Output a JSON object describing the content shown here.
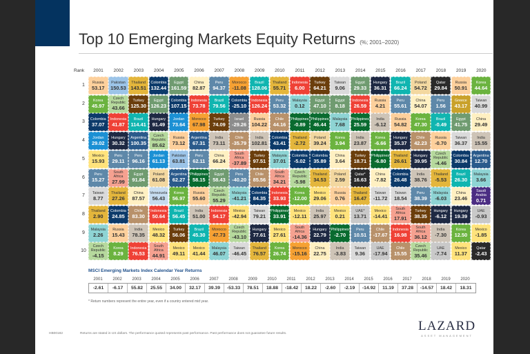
{
  "header": {
    "title": "Top 10 Emerging Markets Equity Returns",
    "subtitle": "(%; 2001–2020)"
  },
  "grid": {
    "rank_label": "Rank",
    "years": [
      "2001",
      "2002",
      "2003",
      "2004",
      "2005",
      "2006",
      "2007",
      "2008",
      "2009",
      "2010",
      "2011",
      "2012",
      "2013",
      "2014",
      "2015",
      "2016",
      "2017",
      "2018",
      "2019",
      "2020"
    ],
    "rows": [
      {
        "rank": "1",
        "cells": [
          [
            "Russia",
            "53.17"
          ],
          [
            "Pakistan",
            "150.53"
          ],
          [
            "Thailand",
            "143.51"
          ],
          [
            "Colombia",
            "132.44"
          ],
          [
            "Egypt",
            "161.59"
          ],
          [
            "China",
            "82.87"
          ],
          [
            "Peru",
            "94.37"
          ],
          [
            "Morocco",
            "-11.08"
          ],
          [
            "Brazil",
            "128.06"
          ],
          [
            "Thailand",
            "55.71"
          ],
          [
            "Indonesia",
            "6.00"
          ],
          [
            "Turkey",
            "64.21"
          ],
          [
            "Taiwan",
            "9.06"
          ],
          [
            "Egypt",
            "29.33"
          ],
          [
            "Hungary",
            "36.31"
          ],
          [
            "Brazil",
            "66.24"
          ],
          [
            "Poland",
            "54.72"
          ],
          [
            "Qatar",
            "29.84"
          ],
          [
            "Russia",
            "50.91"
          ],
          [
            "Korea",
            "44.64"
          ]
        ]
      },
      {
        "rank": "2",
        "cells": [
          [
            "Korea",
            "45.97"
          ],
          [
            "Czech Republic",
            "43.66"
          ],
          [
            "Turkey",
            "125.30"
          ],
          [
            "Egypt",
            "126.23"
          ],
          [
            "Colombia",
            "107.15"
          ],
          [
            "Indonesia",
            "73.78"
          ],
          [
            "Brazil",
            "79.56"
          ],
          [
            "Colombia",
            "-25.10"
          ],
          [
            "Indonesia",
            "126.24"
          ],
          [
            "Peru",
            "53.32"
          ],
          [
            "Malaysia",
            "0.12"
          ],
          [
            "Egypt",
            "47.10"
          ],
          [
            "Egypt",
            "8.18"
          ],
          [
            "Indonesia",
            "26.59"
          ],
          [
            "Russia",
            "4.21"
          ],
          [
            "Peru",
            "55.61"
          ],
          [
            "China",
            "54.07"
          ],
          [
            "Peru",
            "1.56"
          ],
          [
            "Greece",
            "43.17"
          ],
          [
            "Taiwan",
            "40.99"
          ]
        ]
      },
      {
        "rank": "3",
        "cells": [
          [
            "Colombia",
            "37.07"
          ],
          [
            "Indonesia",
            "41.87"
          ],
          [
            "Brazil",
            "114.41"
          ],
          [
            "Hungary",
            "91.49"
          ],
          [
            "Jordan",
            "73.64"
          ],
          [
            "Morocco",
            "67.98"
          ],
          [
            "Turkey",
            "74.09"
          ],
          [
            "Israel",
            "-29.26"
          ],
          [
            "Russia",
            "104.22"
          ],
          [
            "Chile",
            "44.16"
          ],
          [
            "Philippines",
            "-0.89"
          ],
          [
            "Philippines",
            "46.44"
          ],
          [
            "Malaysia",
            "7.68"
          ],
          [
            "Philippines",
            "25.59"
          ],
          [
            "India",
            "-6.12"
          ],
          [
            "Russia",
            "54.82"
          ],
          [
            "Korea",
            "47.30"
          ],
          [
            "Brazil",
            "-0.49"
          ],
          [
            "Egypt",
            "41.75"
          ],
          [
            "China",
            "29.49"
          ]
        ]
      },
      {
        "rank": "4",
        "cells": [
          [
            "Jordan",
            "29.02"
          ],
          [
            "Hungary",
            "30.32"
          ],
          [
            "Argentina",
            "100.35"
          ],
          [
            "Czech Republic",
            "85.62"
          ],
          [
            "Russia",
            "73.12"
          ],
          [
            "Argentina",
            "67.31"
          ],
          [
            "India",
            "73.11"
          ],
          [
            "Chile",
            "-35.79"
          ],
          [
            "India",
            "102.81"
          ],
          [
            "Colombia",
            "43.41"
          ],
          [
            "Thailand",
            "-2.72"
          ],
          [
            "Poland",
            "39.24"
          ],
          [
            "Korea",
            "3.94"
          ],
          [
            "India",
            "23.87"
          ],
          [
            "Korea",
            "-6.66"
          ],
          [
            "Hungary",
            "35.37"
          ],
          [
            "Chile",
            "42.23"
          ],
          [
            "Russia",
            "-0.70"
          ],
          [
            "Taiwan",
            "36.37"
          ],
          [
            "India",
            "15.55"
          ]
        ]
      },
      {
        "rank": "5",
        "cells": [
          [
            "Mexico",
            "15.93"
          ],
          [
            "Peru",
            "29.11"
          ],
          [
            "Peru",
            "96.16"
          ],
          [
            "Jordan",
            "61.13"
          ],
          [
            "Pakistan",
            "63.81"
          ],
          [
            "Peru",
            "62.11"
          ],
          [
            "China",
            "66.24"
          ],
          [
            "South Africa",
            "-37.89"
          ],
          [
            "Turkey",
            "97.51"
          ],
          [
            "Malaysia",
            "37.01"
          ],
          [
            "Colombia",
            "-5.02"
          ],
          [
            "Colombia",
            "35.89"
          ],
          [
            "China",
            "3.64"
          ],
          [
            "Turkey",
            "18.71"
          ],
          [
            "Philippines",
            "-6.80"
          ],
          [
            "Thailand",
            "26.61"
          ],
          [
            "Hungary",
            "39.95"
          ],
          [
            "Czech Republic",
            "-4.46"
          ],
          [
            "Colombia",
            "30.84"
          ],
          [
            "Argentina",
            "12.70"
          ]
        ]
      },
      {
        "rank": "6",
        "cells": [
          [
            "Peru",
            "15.27"
          ],
          [
            "South Africa",
            "27.99"
          ],
          [
            "Egypt",
            "91.84"
          ],
          [
            "Poland",
            "61.08"
          ],
          [
            "Argentina",
            "62.27"
          ],
          [
            "Philippines",
            "58.15"
          ],
          [
            "Egypt",
            "58.43"
          ],
          [
            "Peru",
            "-40.20"
          ],
          [
            "Chile",
            "85.56"
          ],
          [
            "South Africa",
            "34.21"
          ],
          [
            "Czech Republic",
            "-5.98"
          ],
          [
            "Thailand",
            "34.53"
          ],
          [
            "Poland",
            "2.59"
          ],
          [
            "Qatar*",
            "16.63"
          ],
          [
            "China",
            "-7.82"
          ],
          [
            "Colombia",
            "26.48"
          ],
          [
            "India",
            "38.76"
          ],
          [
            "Thailand",
            "-5.53"
          ],
          [
            "Brazil",
            "26.30"
          ],
          [
            "Malaysia",
            "3.66"
          ]
        ]
      },
      {
        "rank": "7",
        "cells": [
          [
            "Taiwan",
            "8.77"
          ],
          [
            "Thailand",
            "27.26"
          ],
          [
            "China",
            "87.57"
          ],
          [
            "Venezuela",
            "56.43"
          ],
          [
            "Korea",
            "56.97"
          ],
          [
            "Russia",
            "55.60"
          ],
          [
            "Czech Republic",
            "55.29"
          ],
          [
            "Malaysia",
            "-41.21"
          ],
          [
            "Colombia",
            "84.35"
          ],
          [
            "Indonesia",
            "33.93"
          ],
          [
            "Korea",
            "-12.00"
          ],
          [
            "Mexico",
            "29.06"
          ],
          [
            "Russia",
            "0.76"
          ],
          [
            "Thailand",
            "16.47"
          ],
          [
            "Taiwan",
            "-11.72"
          ],
          [
            "Taiwan",
            "18.54"
          ],
          [
            "Peru",
            "38.39"
          ],
          [
            "Malaysia",
            "-6.03"
          ],
          [
            "China",
            "23.46"
          ],
          [
            "Saudi Arabia",
            "0.71"
          ]
        ]
      },
      {
        "rank": "8",
        "cells": [
          [
            "Thailand",
            "2.90"
          ],
          [
            "Colombia",
            "24.85"
          ],
          [
            "Chile",
            "83.30"
          ],
          [
            "Indonesia",
            "50.64"
          ],
          [
            "Brazil",
            "56.45"
          ],
          [
            "India",
            "51.00"
          ],
          [
            "Indonesia",
            "54.17"
          ],
          [
            "Mexico",
            "-42.94"
          ],
          [
            "Taiwan",
            "79.21"
          ],
          [
            "Philippines",
            "33.91"
          ],
          [
            "Mexico",
            "-12.11"
          ],
          [
            "India",
            "25.97"
          ],
          [
            "Mexico",
            "0.21"
          ],
          [
            "UAE*",
            "13.71"
          ],
          [
            "Mexico",
            "-14.41"
          ],
          [
            "South Africa",
            "17.91"
          ],
          [
            "Turkey",
            "38.35"
          ],
          [
            "Hungary",
            "-6.12"
          ],
          [
            "Hungary",
            "19.39"
          ],
          [
            "UAE",
            "-0.93"
          ]
        ]
      },
      {
        "rank": "9",
        "cells": [
          [
            "Malaysia",
            "2.26"
          ],
          [
            "Russia",
            "15.43"
          ],
          [
            "India",
            "78.35"
          ],
          [
            "Mexico",
            "48.32"
          ],
          [
            "Turkey",
            "56.06"
          ],
          [
            "Brazil",
            "45.30"
          ],
          [
            "Morocco",
            "47.73"
          ],
          [
            "Czech Republic",
            "-43.10"
          ],
          [
            "Hungary",
            "77.61"
          ],
          [
            "Mexico",
            "27.61"
          ],
          [
            "South Africa",
            "-14.36"
          ],
          [
            "Hungary",
            "22.79"
          ],
          [
            "Philippines",
            "-2.70"
          ],
          [
            "Peru",
            "10.51"
          ],
          [
            "Chile",
            "-17.67"
          ],
          [
            "Indonesia",
            "16.98"
          ],
          [
            "South Africa",
            "36.12"
          ],
          [
            "India",
            "-7.30"
          ],
          [
            "Korea",
            "12.50"
          ],
          [
            "Mexico",
            "-1.85"
          ]
        ]
      },
      {
        "rank": "10",
        "cells": [
          [
            "Czech Republic",
            "-4.15"
          ],
          [
            "Korea",
            "8.29"
          ],
          [
            "Indonesia",
            "76.53"
          ],
          [
            "South Africa",
            "44.91"
          ],
          [
            "Mexico",
            "49.11"
          ],
          [
            "Mexico",
            "41.44"
          ],
          [
            "Malaysia",
            "46.07"
          ],
          [
            "Taiwan",
            "-46.45"
          ],
          [
            "Thailand",
            "76.57"
          ],
          [
            "Korea",
            "26.74"
          ],
          [
            "Morocco",
            "-15.16"
          ],
          [
            "China",
            "22.75"
          ],
          [
            "India",
            "-3.83"
          ],
          [
            "Taiwan",
            "9.36"
          ],
          [
            "UAE",
            "-17.94"
          ],
          [
            "Chile",
            "15.55"
          ],
          [
            "Czech Republic",
            "35.46"
          ],
          [
            "UAE",
            "-7.74"
          ],
          [
            "Mexico",
            "11.37"
          ],
          [
            "Qatar",
            "-2.43"
          ]
        ]
      }
    ]
  },
  "country_colors": {
    "Russia": [
      "#fdd09c",
      "#333"
    ],
    "Pakistan": [
      "#9cc4e8",
      "#333"
    ],
    "Thailand": [
      "#e4b63c",
      "#333"
    ],
    "Colombia": [
      "#0c3a6a",
      "#fff"
    ],
    "Egypt": [
      "#6f9b70",
      "#fff"
    ],
    "China": [
      "#fff0c2",
      "#333"
    ],
    "Peru": [
      "#5e88a9",
      "#fff"
    ],
    "Morocco": [
      "#f6a133",
      "#333"
    ],
    "Brazil": [
      "#10b5b0",
      "#fff"
    ],
    "Indonesia": [
      "#ef4136",
      "#fff"
    ],
    "Turkey": [
      "#6b3e0c",
      "#fff"
    ],
    "Taiwan": [
      "#dadada",
      "#333"
    ],
    "Hungary": [
      "#1e2943",
      "#fff"
    ],
    "Poland": [
      "#f3d8a0",
      "#333"
    ],
    "Qatar": [
      "#2a2a2a",
      "#fff"
    ],
    "Korea": [
      "#6bb33f",
      "#fff"
    ],
    "Czech Republic": [
      "#b6d99d",
      "#333"
    ],
    "Malaysia": [
      "#8ed4d4",
      "#333"
    ],
    "Greece": [
      "#c9a12a",
      "#fff"
    ],
    "Philippines": [
      "#096b2f",
      "#fff"
    ],
    "Israel": [
      "#8c8c8c",
      "#fff"
    ],
    "Chile": [
      "#b8916a",
      "#fff"
    ],
    "India": [
      "#cec4b7",
      "#333"
    ],
    "Jordan": [
      "#1b90d4",
      "#fff"
    ],
    "Argentina": [
      "#2a5a8b",
      "#fff"
    ],
    "Mexico": [
      "#ffe37c",
      "#333"
    ],
    "South Africa": [
      "#f5a190",
      "#333"
    ],
    "Venezuela": [
      "#c6dcef",
      "#333"
    ],
    "UAE": [
      "#c9c9c9",
      "#333"
    ],
    "Saudi Arabia": [
      "#4b2d83",
      "#fff"
    ]
  },
  "index": {
    "title": "MSCI Emerging Markets Index Calendar Year Returns",
    "values": [
      "-2.61",
      "-6.17",
      "55.82",
      "25.55",
      "34.00",
      "32.17",
      "39.39",
      "-53.33",
      "78.51",
      "18.88",
      "-18.42",
      "18.22",
      "-2.60",
      "-2.19",
      "-14.92",
      "11.19",
      "37.28",
      "-14.57",
      "18.42",
      "18.31"
    ]
  },
  "footnote": "* Return numbers represent the entire year, even if a country entered mid year.",
  "footer": {
    "code": "HB00182",
    "disclaimer": "Returns are stated in US dollars. The performance quoted represents past performance. Past performance does not guarantee future results."
  },
  "logo": {
    "name": "LAZARD",
    "tagline": "ASSET MANAGEMENT"
  }
}
